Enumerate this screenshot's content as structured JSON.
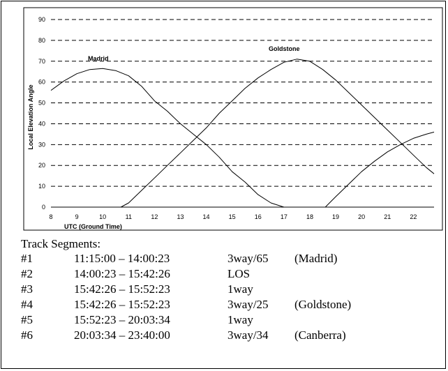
{
  "chart_data": {
    "type": "line",
    "ylabel": "Local Elevation Angle",
    "xlabel": "UTC (Ground Time)",
    "xlim": [
      8,
      22.8
    ],
    "ylim": [
      0,
      90
    ],
    "x_ticks": [
      8,
      9,
      10,
      11,
      12,
      13,
      14,
      15,
      16,
      17,
      18,
      19,
      20,
      21,
      22
    ],
    "y_ticks": [
      0,
      10,
      20,
      30,
      40,
      50,
      60,
      70,
      80,
      90
    ],
    "y_grid": "dashed",
    "series": [
      {
        "name": "Madrid",
        "x": [
          8,
          8.5,
          9,
          9.5,
          10,
          10.5,
          11,
          11.5,
          12,
          12.5,
          13,
          13.5,
          14,
          14.5,
          15,
          15.5,
          16,
          16.5,
          17
        ],
        "y": [
          56,
          60.5,
          64,
          66,
          66.5,
          65.5,
          63,
          58,
          51,
          46,
          40,
          35,
          30,
          24,
          17,
          12,
          6,
          2,
          0
        ]
      },
      {
        "name": "Goldstone",
        "x": [
          10.7,
          11,
          11.5,
          12,
          12.5,
          13,
          13.5,
          14,
          14.5,
          15,
          15.5,
          16,
          16.5,
          17,
          17.5,
          18,
          18.5,
          19,
          19.5,
          20,
          20.5,
          21,
          21.5,
          22,
          22.5,
          22.8
        ],
        "y": [
          0,
          2,
          8,
          14,
          20,
          26,
          32,
          38,
          45,
          51,
          57,
          62,
          66,
          69.5,
          71,
          70,
          66,
          61,
          55,
          49,
          43,
          37,
          31,
          25,
          19,
          16
        ]
      },
      {
        "name": "",
        "x": [
          8,
          10.7,
          18.6,
          19,
          19.5,
          20,
          20.5,
          21,
          21.5,
          22,
          22.5,
          22.8
        ],
        "y": [
          0,
          0,
          0,
          5,
          11,
          17,
          22,
          26.5,
          30,
          33,
          35,
          36
        ]
      }
    ]
  },
  "segments": {
    "title": "Track Segments:",
    "rows": [
      {
        "id": "#1",
        "time": "11:15:00 – 14:00:23",
        "mode": "3way/65",
        "station": "(Madrid)"
      },
      {
        "id": "#2",
        "time": "14:00:23 – 15:42:26",
        "mode": "LOS",
        "station": ""
      },
      {
        "id": "#3",
        "time": "15:42:26 – 15:52:23",
        "mode": "1way",
        "station": ""
      },
      {
        "id": "#4",
        "time": "15:42:26 – 15:52:23",
        "mode": "3way/25",
        "station": "(Goldstone)"
      },
      {
        "id": "#5",
        "time": "15:52:23 – 20:03:34",
        "mode": "1way",
        "station": ""
      },
      {
        "id": "#6",
        "time": "20:03:34 – 23:40:00",
        "mode": "3way/34",
        "station": "(Canberra)"
      }
    ]
  }
}
